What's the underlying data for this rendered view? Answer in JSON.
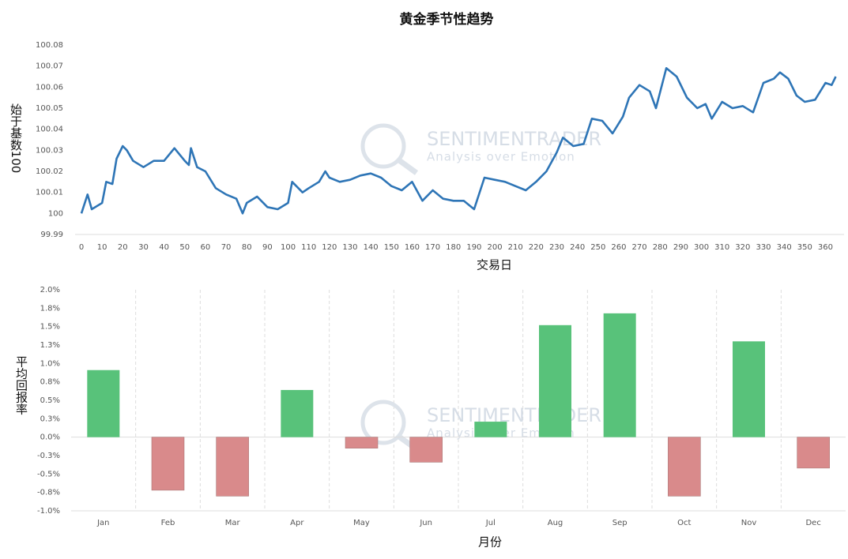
{
  "chart_data": [
    {
      "type": "line",
      "title": "黄金季节性趋势",
      "y_label": "始于基数100",
      "x_label": "交易日",
      "watermark": {
        "title": "SENTIMENTRADER",
        "subtitle": "Analysis over Emotion"
      },
      "color": "#2e75b6",
      "x": [
        0,
        3,
        5,
        10,
        12,
        15,
        17,
        20,
        22,
        25,
        30,
        35,
        40,
        45,
        50,
        52,
        53,
        56,
        60,
        65,
        70,
        75,
        78,
        80,
        85,
        90,
        95,
        100,
        102,
        107,
        110,
        115,
        118,
        120,
        125,
        130,
        135,
        140,
        145,
        150,
        155,
        160,
        165,
        170,
        175,
        180,
        185,
        190,
        195,
        200,
        205,
        210,
        215,
        220,
        225,
        230,
        233,
        238,
        243,
        247,
        252,
        257,
        262,
        265,
        270,
        275,
        278,
        283,
        288,
        293,
        298,
        302,
        305,
        310,
        315,
        320,
        325,
        330,
        335,
        338,
        342,
        346,
        350,
        355,
        360,
        363,
        365
      ],
      "values": [
        100.0,
        100.009,
        100.002,
        100.005,
        100.015,
        100.014,
        100.026,
        100.032,
        100.03,
        100.025,
        100.022,
        100.025,
        100.025,
        100.031,
        100.025,
        100.023,
        100.031,
        100.022,
        100.02,
        100.012,
        100.009,
        100.007,
        100.0,
        100.005,
        100.008,
        100.003,
        100.002,
        100.005,
        100.015,
        100.01,
        100.012,
        100.015,
        100.02,
        100.017,
        100.015,
        100.016,
        100.018,
        100.019,
        100.017,
        100.013,
        100.011,
        100.015,
        100.006,
        100.011,
        100.007,
        100.006,
        100.006,
        100.002,
        100.017,
        100.016,
        100.015,
        100.013,
        100.011,
        100.015,
        100.02,
        100.029,
        100.036,
        100.032,
        100.033,
        100.045,
        100.044,
        100.038,
        100.046,
        100.055,
        100.061,
        100.058,
        100.05,
        100.069,
        100.065,
        100.055,
        100.05,
        100.052,
        100.045,
        100.053,
        100.05,
        100.051,
        100.048,
        100.062,
        100.064,
        100.067,
        100.064,
        100.056,
        100.053,
        100.054,
        100.062,
        100.061,
        100.065
      ],
      "xlim": [
        0,
        369
      ],
      "xticks": [
        0,
        10,
        20,
        30,
        40,
        50,
        60,
        70,
        80,
        90,
        100,
        110,
        120,
        130,
        140,
        150,
        160,
        170,
        180,
        190,
        200,
        210,
        220,
        230,
        240,
        250,
        260,
        270,
        280,
        290,
        300,
        310,
        320,
        330,
        340,
        350,
        360
      ],
      "ylim": [
        99.99,
        100.08
      ],
      "yticks": [
        99.99,
        100,
        100.01,
        100.02,
        100.03,
        100.04,
        100.05,
        100.06,
        100.07,
        100.08
      ]
    },
    {
      "type": "bar",
      "y_label": "平均回报率",
      "x_label": "月份",
      "watermark": {
        "title": "SENTIMENTRADER",
        "subtitle": "Analysis over Emotion"
      },
      "positive_color": "#58c27a",
      "negative_color": "#d98a8b",
      "categories": [
        "Jan",
        "Feb",
        "Mar",
        "Apr",
        "May",
        "Jun",
        "Jul",
        "Aug",
        "Sep",
        "Oct",
        "Nov",
        "Dec"
      ],
      "values": [
        0.91,
        -0.72,
        -0.8,
        0.64,
        -0.15,
        -0.34,
        0.21,
        1.52,
        1.68,
        -0.8,
        1.3,
        -0.42
      ],
      "ylim": [
        -1,
        2
      ],
      "yticks": [
        {
          "value": -1,
          "label": "-1.0%"
        },
        {
          "value": -0.75,
          "label": "-0.8%"
        },
        {
          "value": -0.5,
          "label": "-0.5%"
        },
        {
          "value": -0.25,
          "label": "-0.3%"
        },
        {
          "value": 0,
          "label": "0.0%"
        },
        {
          "value": 0.25,
          "label": "0.3%"
        },
        {
          "value": 0.5,
          "label": "0.5%"
        },
        {
          "value": 0.75,
          "label": "0.8%"
        },
        {
          "value": 1,
          "label": "1.0%"
        },
        {
          "value": 1.25,
          "label": "1.3%"
        },
        {
          "value": 1.5,
          "label": "1.5%"
        },
        {
          "value": 1.75,
          "label": "1.8%"
        },
        {
          "value": 2,
          "label": "2.0%"
        }
      ]
    }
  ]
}
